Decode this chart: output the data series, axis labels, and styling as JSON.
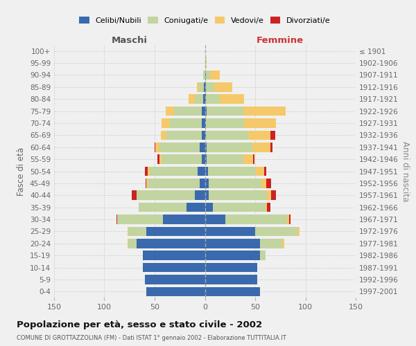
{
  "age_groups": [
    "0-4",
    "5-9",
    "10-14",
    "15-19",
    "20-24",
    "25-29",
    "30-34",
    "35-39",
    "40-44",
    "45-49",
    "50-54",
    "55-59",
    "60-64",
    "65-69",
    "70-74",
    "75-79",
    "80-84",
    "85-89",
    "90-94",
    "95-99",
    "100+"
  ],
  "birth_years": [
    "1997-2001",
    "1992-1996",
    "1987-1991",
    "1982-1986",
    "1977-1981",
    "1972-1976",
    "1967-1971",
    "1962-1966",
    "1957-1961",
    "1952-1956",
    "1947-1951",
    "1942-1946",
    "1937-1941",
    "1932-1936",
    "1927-1931",
    "1922-1926",
    "1917-1921",
    "1912-1916",
    "1907-1911",
    "1902-1906",
    "≤ 1901"
  ],
  "male_celibi": [
    58,
    60,
    62,
    62,
    68,
    58,
    42,
    18,
    10,
    5,
    7,
    3,
    5,
    3,
    3,
    3,
    2,
    1,
    0,
    0,
    0
  ],
  "male_coniugati": [
    0,
    0,
    0,
    0,
    8,
    18,
    45,
    48,
    58,
    52,
    48,
    40,
    40,
    35,
    32,
    28,
    8,
    5,
    2,
    0,
    0
  ],
  "male_vedovi": [
    0,
    0,
    0,
    0,
    1,
    1,
    0,
    0,
    0,
    1,
    2,
    2,
    4,
    6,
    8,
    8,
    6,
    2,
    0,
    0,
    0
  ],
  "male_divorziati": [
    0,
    0,
    0,
    0,
    0,
    0,
    1,
    0,
    5,
    1,
    3,
    2,
    1,
    0,
    0,
    0,
    0,
    0,
    0,
    0,
    0
  ],
  "fem_nubili": [
    55,
    52,
    52,
    55,
    55,
    50,
    20,
    8,
    4,
    4,
    3,
    2,
    2,
    1,
    1,
    2,
    1,
    1,
    1,
    0,
    0
  ],
  "fem_coniugate": [
    0,
    0,
    0,
    5,
    22,
    42,
    62,
    52,
    58,
    52,
    48,
    36,
    45,
    42,
    38,
    36,
    14,
    8,
    4,
    1,
    0
  ],
  "fem_vedove": [
    0,
    0,
    0,
    0,
    2,
    2,
    2,
    2,
    4,
    5,
    8,
    10,
    18,
    22,
    32,
    42,
    24,
    18,
    10,
    1,
    0
  ],
  "fem_divorziate": [
    0,
    0,
    0,
    0,
    0,
    0,
    1,
    3,
    5,
    5,
    2,
    1,
    2,
    5,
    0,
    0,
    0,
    0,
    0,
    0,
    0
  ],
  "colors": {
    "celibi": "#3a6aad",
    "coniugati": "#c2d4a0",
    "vedovi": "#f5c96a",
    "divorziati": "#cc2222"
  },
  "xlim": 150,
  "title": "Popolazione per età, sesso e stato civile - 2002",
  "subtitle": "COMUNE DI GROTTAZZOLINA (FM) - Dati ISTAT 1° gennaio 2002 - Elaborazione TUTTITALIA.IT",
  "ylabel_left": "Fasce di età",
  "ylabel_right": "Anni di nascita",
  "xlabel_left": "Maschi",
  "xlabel_right": "Femmine",
  "bg_color": "#f0f0f0"
}
